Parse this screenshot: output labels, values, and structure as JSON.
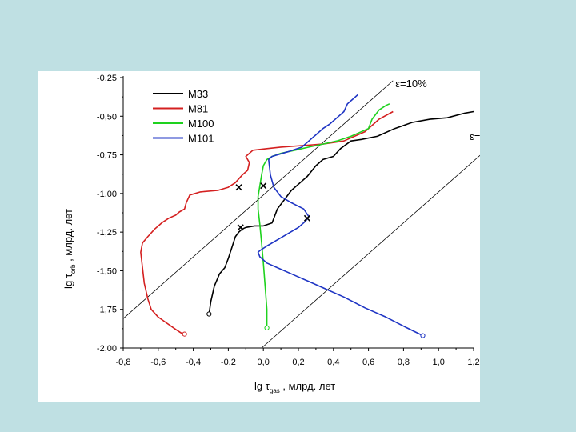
{
  "chart_data": {
    "type": "line",
    "title": "",
    "xlabel": {
      "prefix": "lg τ",
      "sub": "gas",
      "suffix": ", млрд. лет"
    },
    "ylabel": {
      "prefix": "lg τ",
      "sub": "orb",
      "suffix": ", млрд. лет"
    },
    "xlim": [
      -0.8,
      1.2
    ],
    "ylim": [
      -2.0,
      -0.25
    ],
    "xticks": [
      "-0,8",
      "-0,6",
      "-0,4",
      "-0,2",
      "0,0",
      "0,2",
      "0,4",
      "0,6",
      "0,8",
      "1,0",
      "1,2"
    ],
    "xtick_values": [
      -0.8,
      -0.6,
      -0.4,
      -0.2,
      0.0,
      0.2,
      0.4,
      0.6,
      0.8,
      1.0,
      1.2
    ],
    "yticks": [
      "-0,25",
      "-0,50",
      "-0,75",
      "-1,00",
      "-1,25",
      "-1,50",
      "-1,75",
      "-2,00"
    ],
    "ytick_values": [
      -0.25,
      -0.5,
      -0.75,
      -1.0,
      -1.25,
      -1.5,
      -1.75,
      -2.0
    ],
    "legend_position": "top-left",
    "series": [
      {
        "name": "M33",
        "color": "#000000",
        "x": [
          -0.31,
          -0.3,
          -0.28,
          -0.25,
          -0.22,
          -0.2,
          -0.18,
          -0.16,
          -0.14,
          -0.12,
          -0.1,
          -0.05,
          0.0,
          0.05,
          0.08,
          0.12,
          0.16,
          0.2,
          0.25,
          0.3,
          0.34,
          0.4,
          0.44,
          0.5,
          0.56,
          0.65,
          0.75,
          0.85,
          0.95,
          1.05,
          1.15,
          1.2
        ],
        "y": [
          -1.78,
          -1.7,
          -1.6,
          -1.52,
          -1.48,
          -1.42,
          -1.35,
          -1.28,
          -1.25,
          -1.23,
          -1.22,
          -1.21,
          -1.21,
          -1.19,
          -1.1,
          -1.04,
          -0.98,
          -0.94,
          -0.89,
          -0.82,
          -0.78,
          -0.76,
          -0.71,
          -0.66,
          -0.65,
          -0.63,
          -0.58,
          -0.54,
          -0.52,
          -0.51,
          -0.48,
          -0.47
        ]
      },
      {
        "name": "M81",
        "color": "#d42020",
        "x": [
          -0.46,
          -0.5,
          -0.55,
          -0.6,
          -0.64,
          -0.66,
          -0.68,
          -0.69,
          -0.7,
          -0.69,
          -0.66,
          -0.62,
          -0.58,
          -0.54,
          -0.5,
          -0.48,
          -0.45,
          -0.44,
          -0.42,
          -0.36,
          -0.26,
          -0.2,
          -0.16,
          -0.12,
          -0.09,
          -0.08,
          -0.1,
          -0.06,
          0.02,
          0.1,
          0.22,
          0.34,
          0.46,
          0.58,
          0.66,
          0.74
        ],
        "y": [
          -1.91,
          -1.88,
          -1.84,
          -1.8,
          -1.75,
          -1.68,
          -1.58,
          -1.48,
          -1.38,
          -1.32,
          -1.28,
          -1.23,
          -1.19,
          -1.16,
          -1.14,
          -1.12,
          -1.1,
          -1.06,
          -1.01,
          -0.99,
          -0.98,
          -0.96,
          -0.93,
          -0.88,
          -0.85,
          -0.8,
          -0.76,
          -0.72,
          -0.71,
          -0.7,
          -0.69,
          -0.68,
          -0.66,
          -0.6,
          -0.52,
          -0.47
        ]
      },
      {
        "name": "M100",
        "color": "#1ed21e",
        "x": [
          0.02,
          0.02,
          0.01,
          0.0,
          -0.01,
          -0.02,
          -0.03,
          -0.03,
          -0.02,
          -0.01,
          0.0,
          0.02,
          0.05,
          0.1,
          0.18,
          0.26,
          0.34,
          0.42,
          0.5,
          0.6,
          0.62,
          0.66,
          0.7,
          0.72
        ],
        "y": [
          -1.87,
          -1.75,
          -1.6,
          -1.45,
          -1.32,
          -1.2,
          -1.1,
          -1.02,
          -0.95,
          -0.88,
          -0.82,
          -0.78,
          -0.76,
          -0.74,
          -0.72,
          -0.7,
          -0.68,
          -0.66,
          -0.63,
          -0.58,
          -0.52,
          -0.46,
          -0.43,
          -0.42
        ]
      },
      {
        "name": "M101",
        "color": "#1f35c4",
        "x": [
          0.91,
          0.82,
          0.7,
          0.58,
          0.46,
          0.36,
          0.26,
          0.16,
          0.08,
          0.02,
          -0.02,
          -0.03,
          -0.02,
          0.02,
          0.08,
          0.14,
          0.2,
          0.24,
          0.26,
          0.23,
          0.16,
          0.1,
          0.06,
          0.04,
          0.03,
          0.05,
          0.14,
          0.22,
          0.26,
          0.3,
          0.34,
          0.38,
          0.42,
          0.46,
          0.48,
          0.52,
          0.54
        ],
        "y": [
          -1.92,
          -1.87,
          -1.8,
          -1.74,
          -1.67,
          -1.62,
          -1.57,
          -1.52,
          -1.48,
          -1.45,
          -1.41,
          -1.38,
          -1.37,
          -1.34,
          -1.3,
          -1.26,
          -1.22,
          -1.18,
          -1.15,
          -1.1,
          -1.06,
          -1.02,
          -0.96,
          -0.88,
          -0.78,
          -0.76,
          -0.73,
          -0.7,
          -0.66,
          -0.62,
          -0.58,
          -0.55,
          -0.51,
          -0.47,
          -0.42,
          -0.38,
          -0.36
        ]
      }
    ],
    "markers": [
      {
        "series": "M33",
        "shape": "x",
        "x": -0.13,
        "y": -1.22
      },
      {
        "series": "M81",
        "shape": "x",
        "x": -0.14,
        "y": -0.96
      },
      {
        "series": "M100",
        "shape": "x",
        "x": 0.0,
        "y": -0.95
      },
      {
        "series": "M101",
        "shape": "x",
        "x": 0.25,
        "y": -1.16
      },
      {
        "series": "M33",
        "shape": "circle",
        "x": -0.31,
        "y": -1.78
      },
      {
        "series": "M81",
        "shape": "circle",
        "x": -0.45,
        "y": -1.91
      },
      {
        "series": "M100",
        "shape": "circle",
        "x": 0.02,
        "y": -1.87
      },
      {
        "series": "M101",
        "shape": "circle",
        "x": 0.91,
        "y": -1.92
      }
    ],
    "reference_lines": [
      {
        "label": "ε=10%",
        "x1": -0.8,
        "y1": -1.81,
        "x2": 0.74,
        "y2": -0.27
      },
      {
        "label": "ε=",
        "x1": -0.01,
        "y1": -2.0,
        "x2": 1.24,
        "y2": -0.75
      }
    ]
  }
}
